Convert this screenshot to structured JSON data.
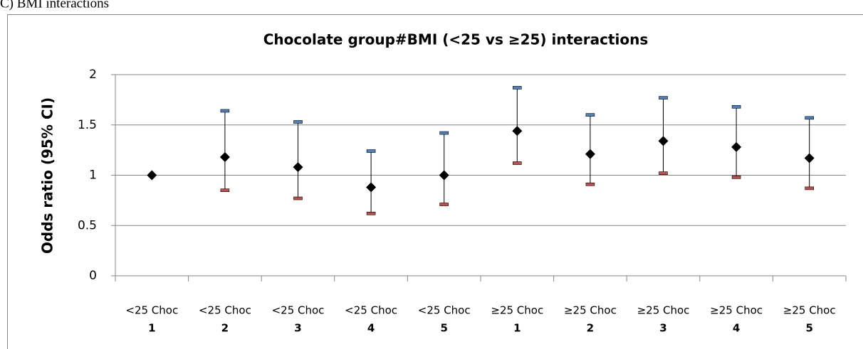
{
  "caption": "C) BMI interactions",
  "chart_data": {
    "type": "errorbar",
    "title": "Chocolate group#BMI (<25 vs ≥25) interactions",
    "y_label": "Odds ratio (95% CI)",
    "categories": [
      [
        "<25 Choc",
        "1"
      ],
      [
        "<25 Choc",
        "2"
      ],
      [
        "<25 Choc",
        "3"
      ],
      [
        "<25 Choc",
        "4"
      ],
      [
        "<25 Choc",
        "5"
      ],
      [
        "≥25 Choc",
        "1"
      ],
      [
        "≥25 Choc",
        "2"
      ],
      [
        "≥25 Choc",
        "3"
      ],
      [
        "≥25 Choc",
        "4"
      ],
      [
        "≥25 Choc",
        "5"
      ]
    ],
    "values": [
      1.0,
      1.18,
      1.08,
      0.88,
      1.0,
      1.44,
      1.21,
      1.34,
      1.28,
      1.17
    ],
    "upper": [
      null,
      1.64,
      1.53,
      1.24,
      1.42,
      1.87,
      1.6,
      1.77,
      1.68,
      1.57
    ],
    "lower": [
      null,
      0.85,
      0.77,
      0.62,
      0.71,
      1.12,
      0.91,
      1.02,
      0.98,
      0.87
    ],
    "color": "#000000",
    "upper_color": "#4f81bd",
    "lower_color": "#c0504d",
    "ylim": [
      0,
      2
    ],
    "yticks": [
      0,
      0.5,
      1,
      1.5,
      2
    ],
    "grid": true
  }
}
